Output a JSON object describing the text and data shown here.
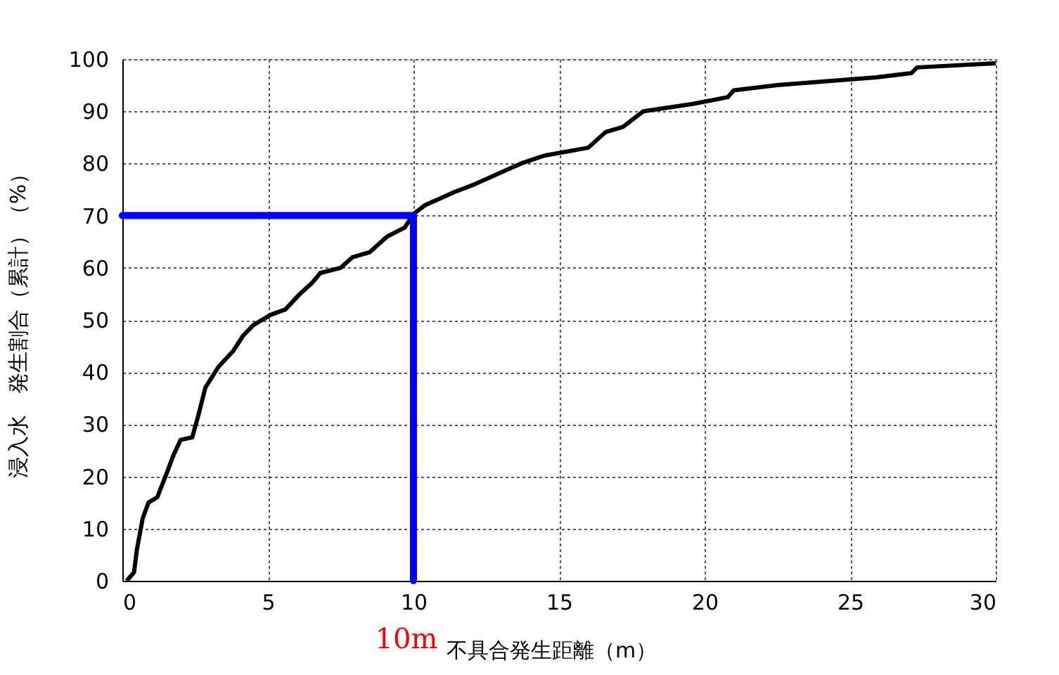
{
  "chart_data": {
    "type": "line",
    "xlabel": "不具合発生距離（m）",
    "ylabel": "浸入水　発生割合（累計）（%）",
    "xlim": [
      0,
      30
    ],
    "xticks": [
      0,
      5,
      10,
      15,
      20,
      25,
      30
    ],
    "ylim": [
      0,
      100
    ],
    "yticks": [
      0,
      10,
      20,
      30,
      40,
      50,
      60,
      70,
      80,
      90,
      100
    ],
    "grid": true,
    "marker": "none",
    "line_style": "solid",
    "annotations": [
      {
        "text": "10m",
        "x": 10,
        "y": 0
      }
    ],
    "series": [
      {
        "color": "#000000",
        "x": [
          0.15,
          0.4,
          0.5,
          0.7,
          0.9,
          1.2,
          1.55,
          1.75,
          2.0,
          2.4,
          2.6,
          2.85,
          3.3,
          3.8,
          4.15,
          4.5,
          5.1,
          5.6,
          6.1,
          6.5,
          6.8,
          7.5,
          7.9,
          8.5,
          9.1,
          9.7,
          10.0,
          10.4,
          11.4,
          12.1,
          12.9,
          13.7,
          14.5,
          16.0,
          16.6,
          17.2,
          17.9,
          19.6,
          20.8,
          21.0,
          22.5,
          25.9,
          27.1,
          27.3,
          30.0
        ],
        "values": [
          0,
          1.6,
          6,
          12,
          15,
          16,
          21,
          24,
          27,
          27.5,
          31.5,
          37,
          41,
          44,
          47,
          49,
          51,
          52,
          55,
          57,
          59,
          60,
          62,
          63,
          66,
          67.7,
          70.3,
          72,
          74.5,
          76,
          78,
          80,
          81.5,
          83,
          86,
          87,
          90,
          91.4,
          92.7,
          94,
          95,
          96.5,
          97.3,
          98.4,
          99.2
        ]
      },
      {
        "color": "#0000ff",
        "x": [
          0,
          10,
          10
        ],
        "values": [
          70,
          70,
          0
        ]
      }
    ]
  }
}
